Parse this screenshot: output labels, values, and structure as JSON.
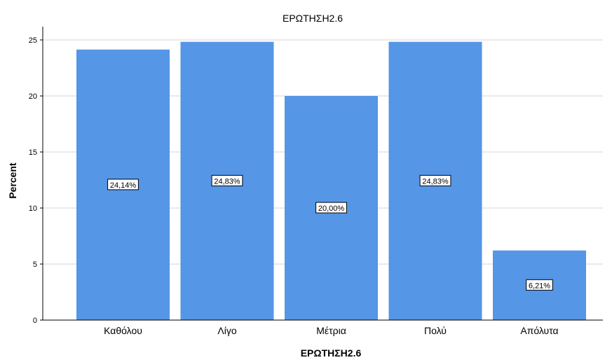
{
  "chart_data": {
    "type": "bar",
    "title": "ΕΡΩΤΗΣΗ2.6",
    "xlabel": "ΕΡΩΤΗΣΗ2.6",
    "ylabel": "Percent",
    "categories": [
      "Καθόλου",
      "Λίγο",
      "Μέτρια",
      "Πολύ",
      "Απόλυτα"
    ],
    "values": [
      24.14,
      24.83,
      20.0,
      24.83,
      6.21
    ],
    "data_labels": [
      "24,14%",
      "24,83%",
      "20,00%",
      "24,83%",
      "6,21%"
    ],
    "ylim": [
      0,
      26
    ],
    "yticks": [
      0,
      5,
      10,
      15,
      20,
      25
    ],
    "grid": true,
    "bar_color": "#5596e6"
  }
}
